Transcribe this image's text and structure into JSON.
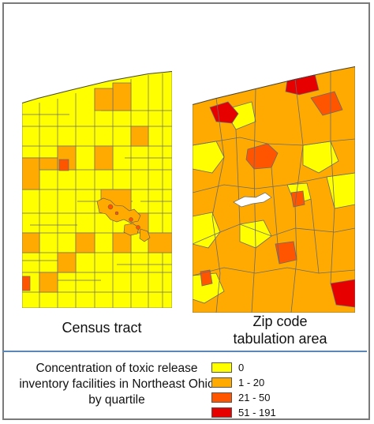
{
  "maps": [
    {
      "label": "Census tract"
    },
    {
      "label": "Zip code\ntabulation area"
    }
  ],
  "legend": {
    "title": "Concentration of toxic release inventory facilities in Northeast Ohio by quartile",
    "items": [
      {
        "label": "0",
        "color": "#ffff00"
      },
      {
        "label": "1 - 20",
        "color": "#ffaa00"
      },
      {
        "label": "21 - 50",
        "color": "#ff5500"
      },
      {
        "label": "51 - 191",
        "color": "#e60000"
      }
    ]
  }
}
